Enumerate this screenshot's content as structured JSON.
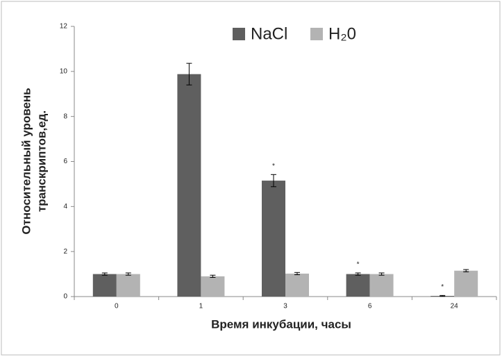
{
  "chart_data": {
    "type": "bar",
    "categories": [
      "0",
      "1",
      "3",
      "6",
      "24"
    ],
    "series": [
      {
        "name": "NaCl",
        "color": "#5f5f5f",
        "values": [
          1.0,
          9.88,
          5.15,
          1.0,
          0.03
        ],
        "errors": [
          0.05,
          0.48,
          0.27,
          0.05,
          0.02
        ]
      },
      {
        "name": "H₂0",
        "color": "#b3b3b3",
        "values": [
          1.0,
          0.9,
          1.02,
          1.0,
          1.15
        ],
        "errors": [
          0.05,
          0.05,
          0.05,
          0.05,
          0.05
        ]
      }
    ],
    "annotations": [
      {
        "text": "*",
        "category": "3"
      },
      {
        "text": "*",
        "category": "6"
      },
      {
        "text": "*",
        "category": "24"
      }
    ],
    "ylim": [
      0,
      12
    ],
    "yticks": [
      0,
      2,
      4,
      6,
      8,
      10,
      12
    ],
    "grid": false,
    "xlabel": "Время инкубации, часы",
    "ylabel": [
      "Относительный уровень",
      "транскриптов,ед."
    ],
    "legend": "top"
  }
}
